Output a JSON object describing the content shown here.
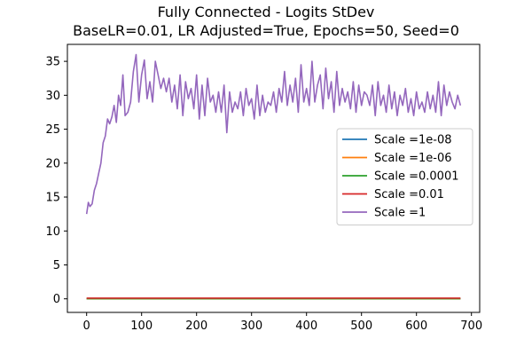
{
  "chart_data": {
    "type": "line",
    "title": "Fully Connected - Logits StDev",
    "subtitle": "BaseLR=0.01, LR Adjusted=True, Epochs=50, Seed=0",
    "xlabel": "",
    "ylabel": "",
    "xlim": [
      -35,
      715
    ],
    "ylim": [
      -2,
      37.5
    ],
    "x_ticks": [
      0,
      100,
      200,
      300,
      400,
      500,
      600,
      700
    ],
    "y_ticks": [
      0,
      5,
      10,
      15,
      20,
      25,
      30,
      35
    ],
    "grid": false,
    "legend_position": "center-right",
    "series": [
      {
        "name": "Scale =1e-08",
        "color": "#1f77b4",
        "x": [
          0,
          680
        ],
        "y": [
          0.0,
          0.0
        ]
      },
      {
        "name": "Scale =1e-06",
        "color": "#ff7f0e",
        "x": [
          0,
          680
        ],
        "y": [
          0.0,
          0.0
        ]
      },
      {
        "name": "Scale =0.0001",
        "color": "#2ca02c",
        "x": [
          0,
          680
        ],
        "y": [
          0.01,
          0.01
        ]
      },
      {
        "name": "Scale =0.01",
        "color": "#d62728",
        "x": [
          0,
          680
        ],
        "y": [
          0.1,
          0.1
        ]
      },
      {
        "name": "Scale =1",
        "color": "#9467bd",
        "x": [
          0,
          3,
          6,
          10,
          14,
          18,
          22,
          26,
          30,
          34,
          38,
          42,
          46,
          50,
          54,
          58,
          62,
          66,
          70,
          75,
          80,
          85,
          90,
          95,
          100,
          105,
          110,
          115,
          120,
          125,
          130,
          135,
          140,
          145,
          150,
          155,
          160,
          165,
          170,
          175,
          180,
          185,
          190,
          195,
          200,
          205,
          210,
          215,
          220,
          225,
          230,
          235,
          240,
          245,
          250,
          255,
          260,
          265,
          270,
          275,
          280,
          285,
          290,
          295,
          300,
          305,
          310,
          315,
          320,
          325,
          330,
          335,
          340,
          345,
          350,
          355,
          360,
          365,
          370,
          375,
          380,
          385,
          390,
          395,
          400,
          405,
          410,
          415,
          420,
          425,
          430,
          435,
          440,
          445,
          450,
          455,
          460,
          465,
          470,
          475,
          480,
          485,
          490,
          495,
          500,
          505,
          510,
          515,
          520,
          525,
          530,
          535,
          540,
          545,
          550,
          555,
          560,
          565,
          570,
          575,
          580,
          585,
          590,
          595,
          600,
          605,
          610,
          615,
          620,
          625,
          630,
          635,
          640,
          645,
          650,
          655,
          660,
          665,
          670,
          675,
          680
        ],
        "y": [
          12.5,
          14.2,
          13.6,
          14.0,
          16.0,
          17.0,
          18.5,
          20.0,
          23.0,
          24.0,
          26.5,
          25.8,
          26.8,
          28.5,
          26.0,
          30.0,
          28.5,
          33.0,
          27.0,
          27.5,
          29.0,
          33.5,
          36.0,
          29.0,
          33.0,
          35.2,
          29.5,
          32.0,
          29.0,
          35.0,
          33.0,
          31.0,
          32.5,
          30.5,
          32.5,
          29.0,
          31.5,
          28.0,
          33.0,
          27.0,
          32.0,
          29.5,
          31.0,
          28.0,
          33.0,
          26.5,
          31.5,
          27.0,
          32.5,
          29.0,
          30.0,
          27.5,
          30.5,
          27.5,
          31.5,
          24.5,
          30.5,
          27.5,
          29.0,
          28.0,
          30.5,
          27.0,
          31.0,
          28.5,
          29.5,
          26.5,
          31.5,
          27.0,
          30.0,
          27.5,
          29.0,
          28.5,
          30.5,
          27.5,
          31.0,
          29.0,
          33.5,
          28.5,
          31.5,
          29.0,
          32.5,
          27.5,
          34.5,
          29.0,
          31.0,
          28.5,
          35.0,
          29.0,
          31.5,
          33.0,
          28.0,
          34.0,
          29.5,
          32.0,
          27.5,
          33.5,
          28.5,
          31.0,
          29.0,
          30.5,
          28.0,
          32.0,
          27.5,
          31.5,
          28.5,
          30.5,
          30.0,
          28.5,
          31.5,
          27.0,
          32.0,
          28.5,
          30.0,
          27.5,
          31.5,
          28.0,
          30.5,
          27.0,
          30.0,
          28.5,
          31.0,
          27.5,
          29.5,
          27.0,
          30.5,
          28.0,
          29.0,
          27.5,
          30.5,
          28.0,
          30.0,
          27.5,
          32.0,
          27.0,
          31.5,
          28.5,
          30.5,
          29.0,
          28.0,
          30.0,
          28.5
        ]
      }
    ]
  }
}
